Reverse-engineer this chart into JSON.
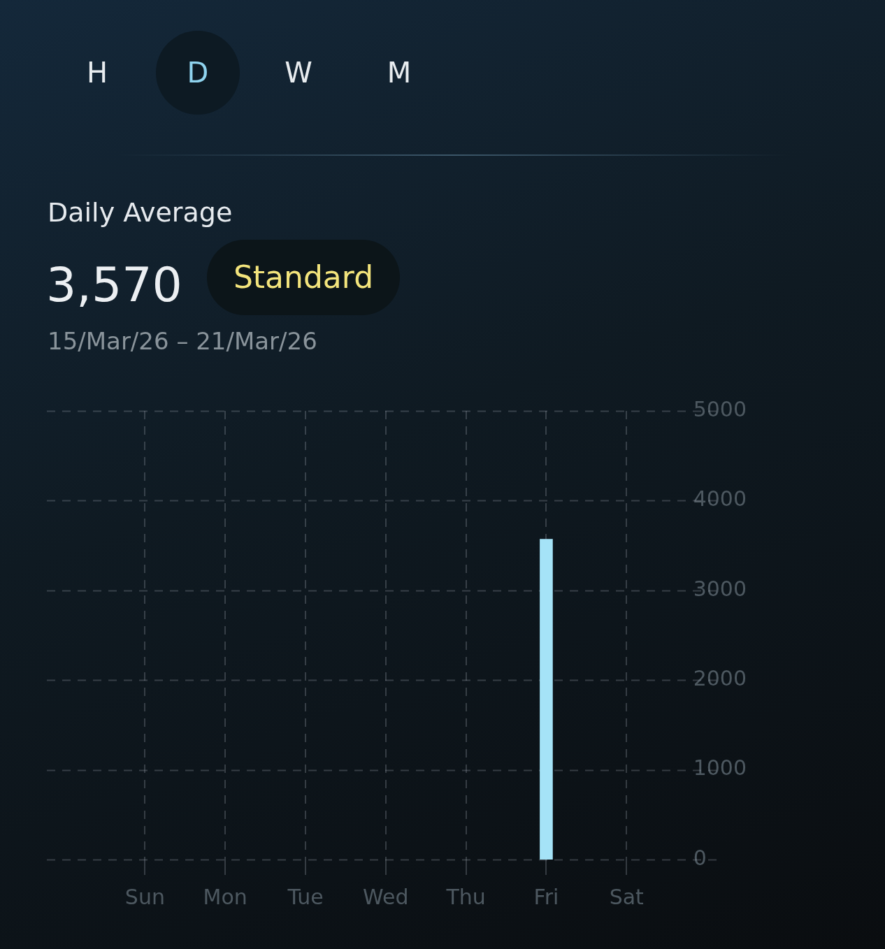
{
  "chart_data": {
    "type": "bar",
    "title": "Daily Average",
    "subtitle": "15/Mar/26 – 21/Mar/26",
    "annotations": [
      "H",
      "D",
      "W",
      "M",
      "3,570",
      "Standard"
    ],
    "categories": [
      "Sun",
      "Mon",
      "Tue",
      "Wed",
      "Thu",
      "Fri",
      "Sat"
    ],
    "values": [
      null,
      null,
      null,
      null,
      null,
      3570,
      null
    ],
    "color": "#a5e3f7",
    "ylim": [
      0,
      5000
    ],
    "yticks": [
      0,
      1000,
      2000,
      3000,
      4000,
      5000
    ],
    "grid": true
  }
}
